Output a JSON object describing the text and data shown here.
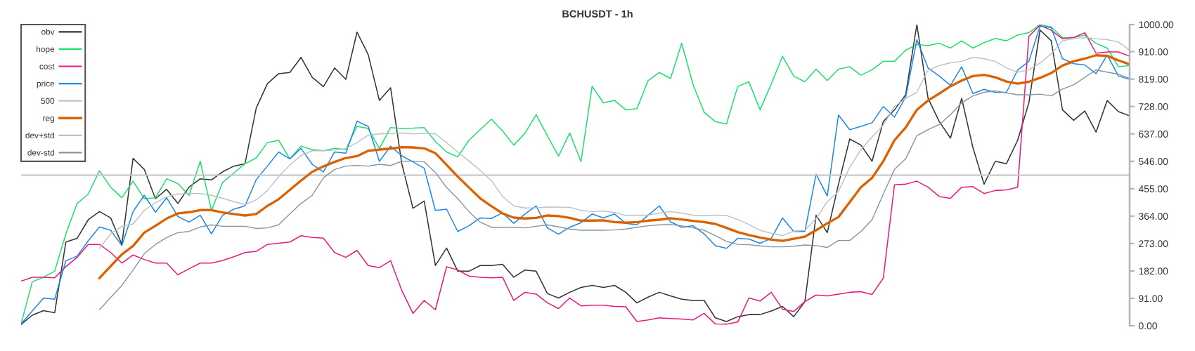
{
  "chart_data": {
    "type": "line",
    "title": "BCHUSDT - 1h",
    "categories": [
      null,
      null,
      null,
      null,
      null,
      null,
      null,
      null,
      null,
      null,
      null,
      null,
      null,
      null,
      null,
      null,
      null,
      null,
      null,
      null,
      null,
      null,
      null,
      null,
      null,
      null,
      null,
      null,
      null,
      null,
      null,
      null,
      null,
      null,
      null,
      null,
      null,
      null,
      null,
      null,
      null,
      null,
      null,
      null,
      null,
      null,
      null,
      null,
      null,
      null,
      null,
      null,
      null,
      null,
      null,
      null,
      null,
      null,
      null,
      null,
      null,
      null,
      null,
      null,
      null,
      null,
      null,
      null,
      null,
      null,
      null,
      null,
      null,
      null,
      null,
      null,
      null,
      null,
      null,
      null,
      null,
      null,
      null,
      null,
      null,
      null,
      null,
      null,
      null,
      null,
      null,
      null,
      null,
      null,
      null,
      null,
      null,
      null,
      null,
      null
    ],
    "series": [
      {
        "name": "obv",
        "color": "#333333",
        "values": [
          4,
          35,
          50,
          43,
          278,
          290,
          352,
          379,
          358,
          270,
          556,
          519,
          422,
          453,
          406,
          460,
          488,
          484,
          511,
          530,
          538,
          723,
          804,
          837,
          841,
          891,
          825,
          794,
          856,
          818,
          975,
          900,
          748,
          790,
          538,
          390,
          414,
          200,
          258,
          181,
          181,
          200,
          200,
          204,
          161,
          185,
          181,
          107,
          92,
          111,
          127,
          134,
          127,
          134,
          111,
          76,
          95,
          111,
          99,
          88,
          84,
          84,
          26,
          14,
          30,
          37,
          37,
          49,
          64,
          30,
          80,
          367,
          309,
          470,
          620,
          600,
          546,
          678,
          717,
          767,
          1000,
          755,
          678,
          623,
          755,
          592,
          470,
          546,
          538,
          616,
          740,
          982,
          946,
          717,
          682,
          713,
          643,
          748,
          711,
          697
        ]
      },
      {
        "name": "hope",
        "color": "#1ee06e",
        "values": [
          6,
          146,
          161,
          181,
          305,
          406,
          437,
          515,
          460,
          425,
          480,
          422,
          425,
          488,
          472,
          433,
          546,
          383,
          476,
          507,
          538,
          557,
          608,
          616,
          554,
          596,
          585,
          581,
          589,
          585,
          662,
          655,
          589,
          658,
          655,
          656,
          658,
          612,
          577,
          561,
          616,
          651,
          686,
          647,
          600,
          639,
          701,
          631,
          563,
          640,
          545,
          795,
          740,
          748,
          717,
          721,
          814,
          841,
          821,
          938,
          802,
          709,
          678,
          670,
          794,
          810,
          717,
          803,
          895,
          829,
          810,
          852,
          814,
          852,
          860,
          832,
          850,
          878,
          878,
          915,
          934,
          930,
          938,
          922,
          946,
          922,
          940,
          954,
          946,
          965,
          973,
          1000,
          992,
          957,
          957,
          965,
          938,
          922,
          860,
          864
        ]
      },
      {
        "name": "cost",
        "color": "#e8197d",
        "values": [
          148,
          161,
          161,
          159,
          196,
          227,
          270,
          270,
          243,
          208,
          235,
          220,
          208,
          208,
          169,
          189,
          208,
          208,
          217,
          229,
          243,
          247,
          270,
          274,
          278,
          299,
          293,
          291,
          243,
          227,
          250,
          200,
          193,
          216,
          117,
          41,
          84,
          53,
          196,
          185,
          165,
          161,
          159,
          161,
          84,
          111,
          105,
          76,
          57,
          92,
          66,
          68,
          68,
          64,
          63,
          14,
          19,
          26,
          24,
          22,
          19,
          41,
          6,
          5,
          12,
          92,
          82,
          111,
          55,
          47,
          80,
          102,
          99,
          105,
          111,
          113,
          104,
          158,
          468,
          470,
          480,
          460,
          429,
          423,
          460,
          462,
          439,
          449,
          451,
          460,
          961,
          998,
          981,
          953,
          957,
          973,
          905,
          909,
          909,
          895
        ]
      },
      {
        "name": "price",
        "color": "#1e88e5",
        "values": [
          6,
          49,
          92,
          88,
          216,
          231,
          282,
          328,
          317,
          266,
          379,
          433,
          377,
          425,
          363,
          344,
          367,
          305,
          367,
          387,
          398,
          485,
          530,
          577,
          554,
          589,
          536,
          511,
          577,
          573,
          679,
          662,
          546,
          596,
          564,
          544,
          523,
          383,
          387,
          313,
          332,
          358,
          356,
          375,
          340,
          371,
          398,
          325,
          304,
          327,
          342,
          371,
          358,
          371,
          340,
          335,
          367,
          398,
          345,
          327,
          332,
          305,
          266,
          257,
          290,
          288,
          274,
          290,
          358,
          313,
          313,
          503,
          431,
          700,
          651,
          662,
          674,
          728,
          693,
          759,
          950,
          856,
          829,
          798,
          860,
          771,
          785,
          775,
          775,
          849,
          878,
          995,
          990,
          887,
          870,
          866,
          837,
          899,
          829,
          818
        ]
      },
      {
        "name": "500",
        "color": "#c4c4c4",
        "values": [
          500,
          500,
          500,
          500,
          500,
          500,
          500,
          500,
          500,
          500,
          500,
          500,
          500,
          500,
          500,
          500,
          500,
          500,
          500,
          500,
          500,
          500,
          500,
          500,
          500,
          500,
          500,
          500,
          500,
          500,
          500,
          500,
          500,
          500,
          500,
          500,
          500,
          500,
          500,
          500,
          500,
          500,
          500,
          500,
          500,
          500,
          500,
          500,
          500,
          500,
          500,
          500,
          500,
          500,
          500,
          500,
          500,
          500,
          500,
          500,
          500,
          500,
          500,
          500,
          500,
          500,
          500,
          500,
          500,
          500,
          500,
          500,
          500,
          500,
          500,
          500,
          500,
          500,
          500,
          500,
          500,
          500,
          500,
          500,
          500,
          500,
          500,
          500,
          500,
          500,
          500,
          500,
          500,
          500,
          500,
          500,
          500,
          500,
          500,
          500
        ]
      },
      {
        "name": "reg",
        "color": "#db6200",
        "values": [
          null,
          null,
          null,
          null,
          null,
          null,
          null,
          158,
          198,
          237,
          265,
          309,
          332,
          356,
          373,
          377,
          384,
          384,
          376,
          371,
          366,
          371,
          398,
          420,
          451,
          482,
          511,
          529,
          544,
          557,
          563,
          581,
          585,
          588,
          593,
          592,
          589,
          573,
          534,
          495,
          459,
          423,
          397,
          373,
          359,
          356,
          358,
          366,
          364,
          358,
          349,
          349,
          350,
          344,
          342,
          344,
          349,
          352,
          357,
          353,
          348,
          344,
          338,
          325,
          311,
          301,
          293,
          286,
          282,
          289,
          296,
          317,
          340,
          361,
          410,
          460,
          491,
          546,
          616,
          658,
          717,
          748,
          771,
          795,
          814,
          829,
          833,
          825,
          811,
          804,
          810,
          823,
          839,
          864,
          878,
          887,
          898,
          896,
          881,
          868
        ]
      },
      {
        "name": "dev+std",
        "color": "#b9c1c9",
        "values": [
          null,
          null,
          null,
          null,
          null,
          null,
          null,
          257,
          305,
          330,
          338,
          383,
          408,
          428,
          437,
          439,
          439,
          433,
          423,
          412,
          402,
          418,
          449,
          495,
          534,
          565,
          581,
          581,
          583,
          588,
          608,
          633,
          637,
          638,
          640,
          637,
          639,
          637,
          608,
          577,
          547,
          516,
          482,
          429,
          398,
          391,
          392,
          394,
          394,
          393,
          383,
          379,
          381,
          376,
          366,
          367,
          367,
          374,
          379,
          374,
          367,
          366,
          367,
          366,
          353,
          336,
          317,
          307,
          299,
          314,
          317,
          356,
          412,
          446,
          526,
          585,
          627,
          666,
          728,
          755,
          775,
          849,
          864,
          873,
          878,
          891,
          887,
          878,
          856,
          842,
          850,
          872,
          903,
          946,
          953,
          957,
          953,
          950,
          942,
          915
        ]
      },
      {
        "name": "dev-std",
        "color": "#8794a1",
        "values": [
          null,
          null,
          null,
          null,
          null,
          null,
          null,
          53,
          94,
          134,
          185,
          239,
          270,
          293,
          309,
          313,
          328,
          335,
          330,
          330,
          330,
          323,
          325,
          335,
          371,
          406,
          433,
          491,
          519,
          530,
          532,
          530,
          536,
          532,
          546,
          547,
          544,
          509,
          459,
          422,
          379,
          344,
          327,
          327,
          327,
          325,
          330,
          335,
          328,
          321,
          317,
          317,
          317,
          318,
          321,
          327,
          332,
          335,
          336,
          332,
          325,
          317,
          299,
          280,
          270,
          269,
          265,
          262,
          262,
          264,
          268,
          266,
          260,
          283,
          283,
          313,
          352,
          437,
          519,
          554,
          631,
          651,
          668,
          701,
          740,
          763,
          775,
          780,
          773,
          767,
          767,
          769,
          763,
          786,
          800,
          825,
          849,
          842,
          835,
          821
        ]
      }
    ],
    "ylim": [
      0,
      1000
    ],
    "yticks": [
      {
        "value": 0,
        "label": "0.00"
      },
      {
        "value": 91,
        "label": "91.00"
      },
      {
        "value": 182,
        "label": "182.00"
      },
      {
        "value": 273,
        "label": "273.00"
      },
      {
        "value": 364,
        "label": "364.00"
      },
      {
        "value": 455,
        "label": "455.00"
      },
      {
        "value": 546,
        "label": "546.00"
      },
      {
        "value": 637,
        "label": "637.00"
      },
      {
        "value": 728,
        "label": "728.00"
      },
      {
        "value": 819,
        "label": "819.00"
      },
      {
        "value": 910,
        "label": "910.00"
      },
      {
        "value": 1000,
        "label": "1000.00"
      }
    ],
    "tick_labels": "y",
    "grid": false,
    "legend": "top left"
  }
}
